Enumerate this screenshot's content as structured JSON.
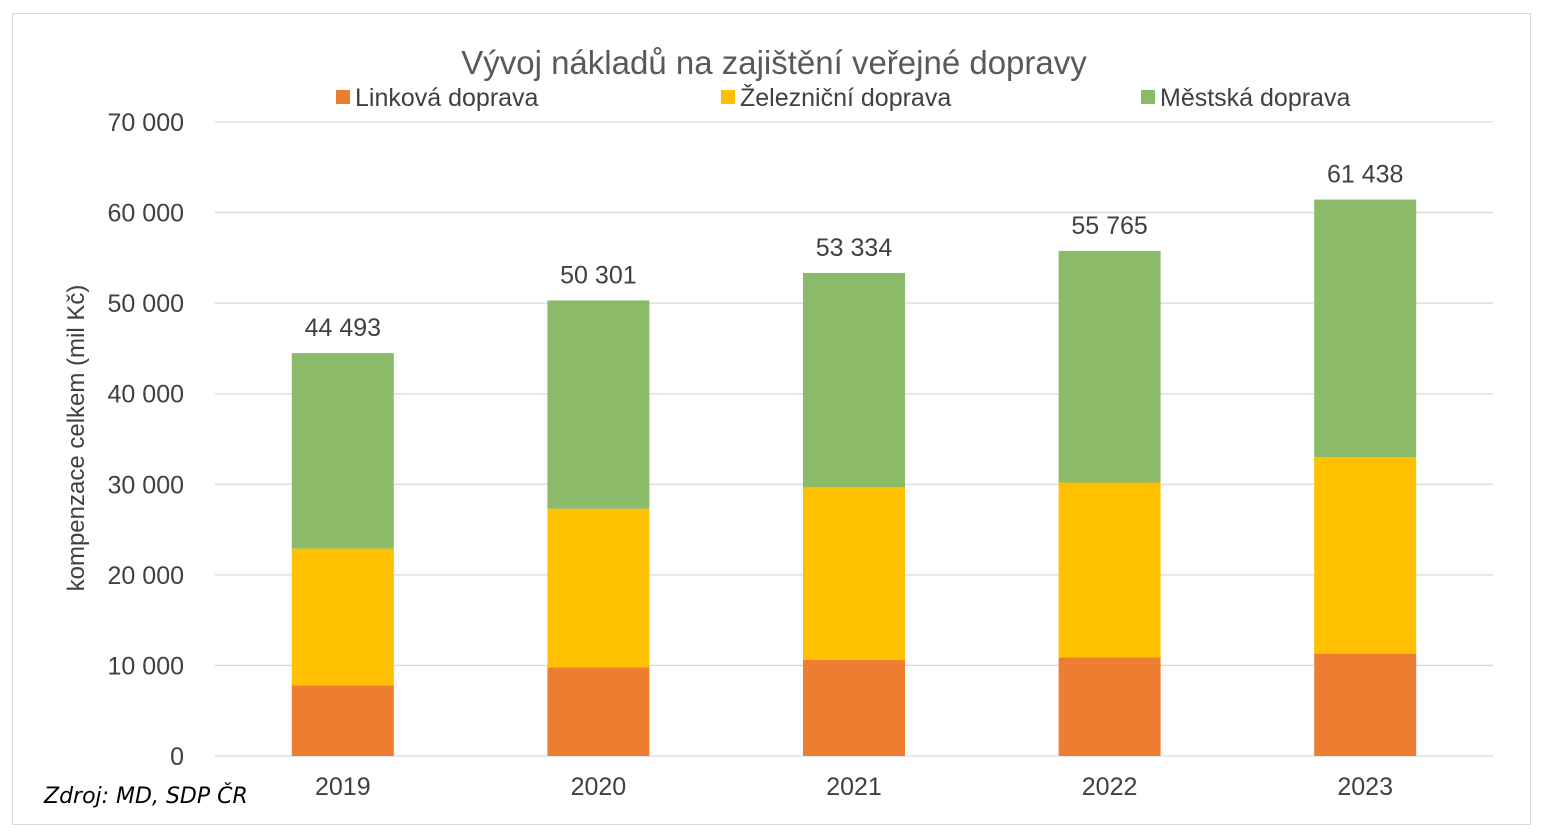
{
  "chart_data": {
    "type": "bar",
    "stacked": true,
    "title": "Vývoj nákladů na zajištění veřejné dopravy",
    "ylabel": "kompenzace celkem (mil Kč)",
    "xlabel": "",
    "ylim": [
      0,
      70000
    ],
    "yticks": [
      0,
      10000,
      20000,
      30000,
      40000,
      50000,
      60000,
      70000
    ],
    "ytick_labels": [
      "0",
      "10 000",
      "20 000",
      "30 000",
      "40 000",
      "50 000",
      "60 000",
      "70 000"
    ],
    "categories": [
      "2019",
      "2020",
      "2021",
      "2022",
      "2023"
    ],
    "series": [
      {
        "name": "Linková doprava",
        "color": "#ED7D31",
        "values": [
          7800,
          9800,
          10600,
          10900,
          11300
        ]
      },
      {
        "name": "Železniční doprava",
        "color": "#FFC000",
        "values": [
          15100,
          17500,
          19100,
          19300,
          21700
        ]
      },
      {
        "name": "Městská doprava",
        "color": "#8BBB69",
        "values": [
          21593,
          23001,
          23634,
          25565,
          28438
        ]
      }
    ],
    "totals": [
      44493,
      50301,
      53334,
      55765,
      61438
    ],
    "total_labels": [
      "44 493",
      "50 301",
      "53 334",
      "55 765",
      "61 438"
    ],
    "grid": true,
    "legend_position": "top"
  },
  "source_note": "Zdroj: MD, SDP ČR"
}
